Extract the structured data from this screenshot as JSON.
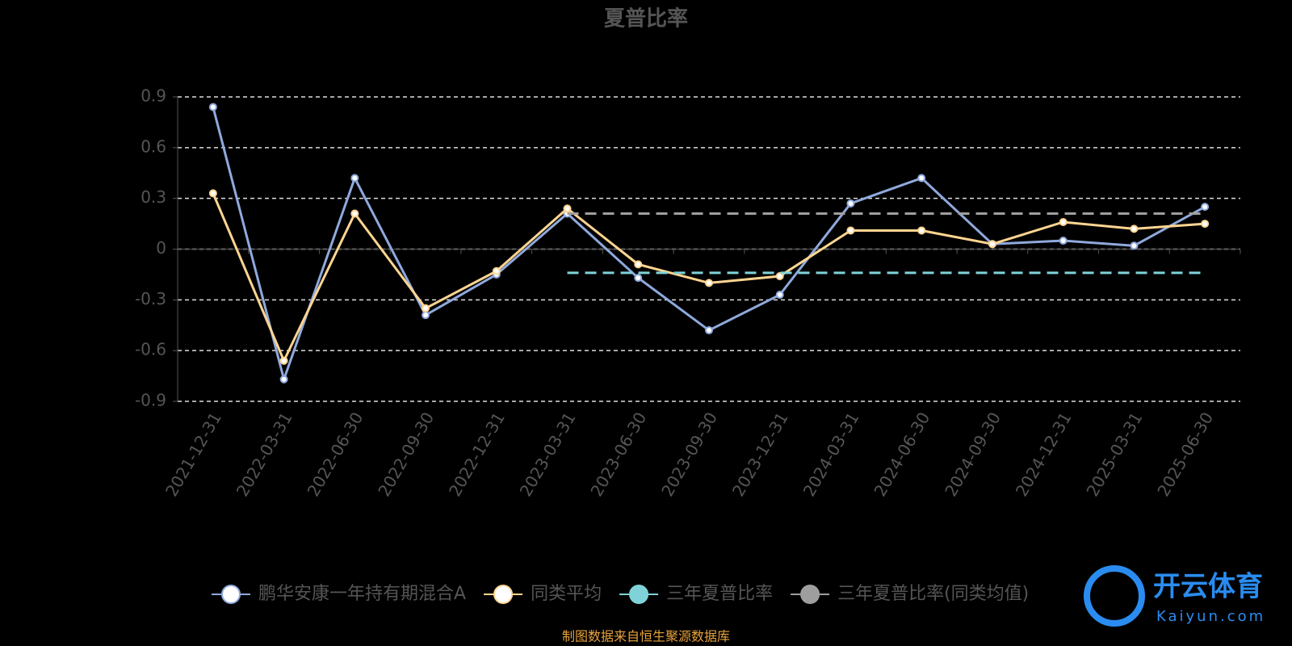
{
  "chart_data": {
    "type": "line",
    "title": "夏普比率",
    "categories": [
      "2021-12-31",
      "2022-03-31",
      "2022-06-30",
      "2022-09-30",
      "2022-12-31",
      "2023-03-31",
      "2023-06-30",
      "2023-09-30",
      "2023-12-31",
      "2024-03-31",
      "2024-06-30",
      "2024-09-30",
      "2024-12-31",
      "2025-03-31",
      "2025-06-30"
    ],
    "series": [
      {
        "name": "鹏华安康一年持有期混合A",
        "color": "#8fa9dc",
        "markers": true,
        "line_style": "solid",
        "values": [
          0.84,
          -0.77,
          0.42,
          -0.39,
          -0.15,
          0.21,
          -0.17,
          -0.48,
          -0.27,
          0.27,
          0.42,
          0.03,
          0.05,
          0.02,
          0.25
        ]
      },
      {
        "name": "同类平均",
        "color": "#ffd591",
        "markers": true,
        "line_style": "solid",
        "values": [
          0.33,
          -0.66,
          0.21,
          -0.35,
          -0.13,
          0.24,
          -0.09,
          -0.2,
          -0.16,
          0.11,
          0.11,
          0.03,
          0.16,
          0.12,
          0.15
        ]
      },
      {
        "name": "三年夏普比率",
        "color": "#7fd3d8",
        "markers": false,
        "line_style": "dashed",
        "values": [
          null,
          null,
          null,
          null,
          null,
          -0.14,
          -0.14,
          -0.14,
          -0.14,
          -0.14,
          -0.14,
          -0.14,
          -0.14,
          -0.14,
          -0.14
        ]
      },
      {
        "name": "三年夏普比率(同类均值)",
        "color": "#9e9e9e",
        "markers": false,
        "line_style": "dashed",
        "values": [
          null,
          null,
          null,
          null,
          null,
          0.21,
          0.21,
          0.21,
          0.21,
          0.21,
          0.21,
          0.21,
          0.21,
          0.21,
          0.21
        ]
      }
    ],
    "ylim": [
      -0.9,
      0.9
    ],
    "yticks": [
      -0.9,
      -0.6,
      -0.3,
      0,
      0.3,
      0.6,
      0.9
    ],
    "grid": true,
    "legend": "bottom",
    "source": "制图数据来自恒生聚源数据库"
  },
  "watermark": {
    "brand": "开云体育",
    "site": "Kaiyun.com"
  }
}
